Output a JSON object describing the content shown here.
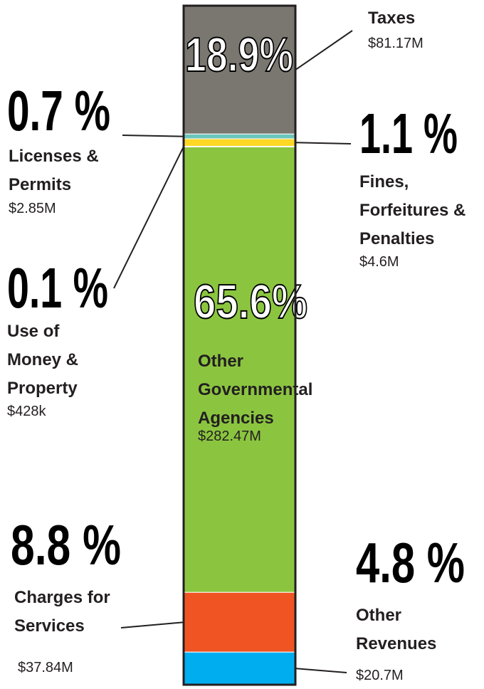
{
  "chart_data": {
    "type": "stacked_bar",
    "categories": [
      "Taxes",
      "Licenses & Permits",
      "Fines, Forfeitures & Penalties",
      "Use of Money & Property",
      "Other Governmental Agencies",
      "Charges for Services",
      "Other Revenues"
    ],
    "values": [
      18.9,
      0.7,
      1.1,
      0.1,
      65.6,
      8.8,
      4.8
    ],
    "value_labels": [
      "18.9%",
      "0.7 %",
      "1.1 %",
      "0.1 %",
      "65.6%",
      "8.8 %",
      "4.8 %"
    ],
    "amount_labels": [
      "$81.17M",
      "$2.85M",
      "$4.6M",
      "$428k",
      "$282.47M",
      "$37.84M",
      "$20.7M"
    ],
    "colors": [
      "#7a7670",
      "#6cc5bd",
      "#ffd826",
      "#7b68b0",
      "#8bc540",
      "#f05423",
      "#00aeef"
    ],
    "ylim": [
      0,
      100
    ]
  }
}
